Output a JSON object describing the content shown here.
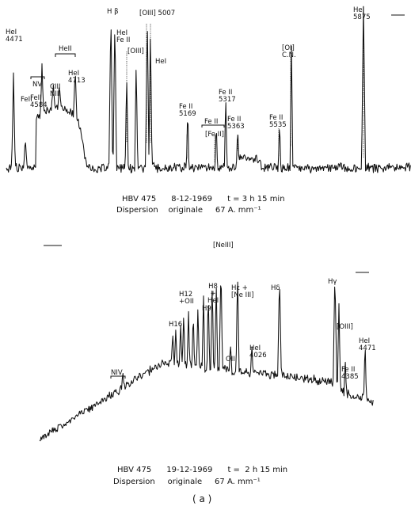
{
  "panel_top": {
    "lines": [
      {
        "id": "hei-4471",
        "lines": [
          "HeI",
          "4471"
        ]
      },
      {
        "id": "feii-a",
        "lines": [
          "FeII"
        ]
      },
      {
        "id": "nv",
        "lines": [
          "NV"
        ]
      },
      {
        "id": "feii-4584",
        "lines": [
          "FeII",
          "4584"
        ]
      },
      {
        "id": "ciii-niii",
        "lines": [
          "CIII",
          "NIII"
        ]
      },
      {
        "id": "heii-bracket",
        "lines": [
          "HeII"
        ]
      },
      {
        "id": "heii-4713",
        "lines": [
          "HeI",
          "4713"
        ]
      },
      {
        "id": "hbeta",
        "lines": [
          "H β"
        ]
      },
      {
        "id": "hei-feii",
        "lines": [
          "HeI",
          "Fe II"
        ]
      },
      {
        "id": "oiii-4959",
        "lines": [
          "[OIII]"
        ]
      },
      {
        "id": "oiii-5007",
        "lines": [
          "[OIII] 5007"
        ]
      },
      {
        "id": "hei-5015",
        "lines": [
          "HeI"
        ]
      },
      {
        "id": "feii-5169",
        "lines": [
          "Fe II",
          "5169"
        ]
      },
      {
        "id": "feii-bracket",
        "lines": [
          "Fe II"
        ]
      },
      {
        "id": "feii-forb",
        "lines": [
          "[Fe II]"
        ]
      },
      {
        "id": "feii-5317",
        "lines": [
          "Fe II",
          "5317"
        ]
      },
      {
        "id": "feii-5363",
        "lines": [
          "Fe II",
          "5363"
        ]
      },
      {
        "id": "oi-cn",
        "lines": [
          "[OI]",
          "C.N."
        ]
      },
      {
        "id": "feii-5535",
        "lines": [
          "Fe II",
          "5535"
        ]
      },
      {
        "id": "hei-5875",
        "lines": [
          "HeI",
          "5875"
        ]
      }
    ],
    "caption_line1": "HBV 475      8-12-1969      t = 3 h 15 min",
    "caption_line2": "Dispersion    originale     67 A. mm⁻¹"
  },
  "panel_bottom": {
    "lines": [
      {
        "id": "nne-bracket",
        "lines": [
          "NIV"
        ]
      },
      {
        "id": "neiii-top",
        "lines": [
          "[NeIII]"
        ]
      },
      {
        "id": "h16",
        "lines": [
          "H16"
        ]
      },
      {
        "id": "h12",
        "lines": [
          "H12",
          "+OII"
        ]
      },
      {
        "id": "h9",
        "lines": [
          "H9"
        ]
      },
      {
        "id": "h8",
        "lines": [
          "H8",
          "+",
          "HeI"
        ]
      },
      {
        "id": "oii",
        "lines": [
          "OII"
        ]
      },
      {
        "id": "heps",
        "lines": [
          "Hε +",
          "[Ne III]"
        ]
      },
      {
        "id": "hei-4026",
        "lines": [
          "HeI",
          "4026"
        ]
      },
      {
        "id": "hdelta",
        "lines": [
          "Hδ"
        ]
      },
      {
        "id": "hgamma",
        "lines": [
          "Hγ"
        ]
      },
      {
        "id": "oiii-4363",
        "lines": [
          "[OIII]"
        ]
      },
      {
        "id": "feii-4385",
        "lines": [
          "Fe II",
          "4385"
        ]
      },
      {
        "id": "hei-4471-b",
        "lines": [
          "HeI",
          "4471"
        ]
      }
    ],
    "caption_line1": "HBV 475      19-12-1969      t =  2 h 15 min",
    "caption_line2": "Dispersion     originale     67 A. mm⁻¹"
  },
  "panel_letter": "( a )"
}
